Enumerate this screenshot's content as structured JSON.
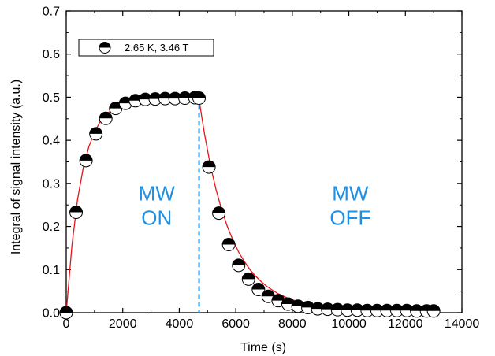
{
  "chart_data": {
    "type": "scatter",
    "xlabel": "Time (s)",
    "ylabel": "Integral of signal intensity (a.u.)",
    "xlim": [
      0,
      14000
    ],
    "ylim": [
      0,
      0.7
    ],
    "xticks": [
      0,
      2000,
      4000,
      6000,
      8000,
      10000,
      12000,
      14000
    ],
    "xtick_labels": [
      "0",
      "2000",
      "4000",
      "6000",
      "8000",
      "10000",
      "12000",
      "14000"
    ],
    "yticks": [
      0.0,
      0.1,
      0.2,
      0.3,
      0.4,
      0.5,
      0.6,
      0.7
    ],
    "ytick_labels": [
      "0.0",
      "0.1",
      "0.2",
      "0.3",
      "0.4",
      "0.5",
      "0.6",
      "0.7"
    ],
    "grid": false,
    "legend_position": "top-left",
    "series": [
      {
        "name": "2.65 K, 3.46 T",
        "marker": "half-filled circle (top black)",
        "x": [
          0,
          350,
          700,
          1050,
          1400,
          1750,
          2100,
          2450,
          2800,
          3150,
          3500,
          3850,
          4200,
          4550,
          4700,
          5050,
          5400,
          5750,
          6100,
          6450,
          6800,
          7150,
          7500,
          7850,
          8200,
          8550,
          8900,
          9250,
          9600,
          9950,
          10300,
          10650,
          11000,
          11350,
          11700,
          12050,
          12400,
          12750,
          13000
        ],
        "y": [
          0.0,
          0.233,
          0.353,
          0.415,
          0.451,
          0.474,
          0.486,
          0.492,
          0.495,
          0.496,
          0.497,
          0.497,
          0.498,
          0.499,
          0.498,
          0.338,
          0.231,
          0.158,
          0.11,
          0.078,
          0.054,
          0.038,
          0.028,
          0.02,
          0.015,
          0.012,
          0.009,
          0.008,
          0.007,
          0.006,
          0.006,
          0.005,
          0.005,
          0.005,
          0.005,
          0.005,
          0.004,
          0.004,
          0.004
        ]
      },
      {
        "name": "fit",
        "style": "red line",
        "color": "#e8141b",
        "x": [
          0,
          200,
          400,
          600,
          800,
          1000,
          1200,
          1400,
          1600,
          1800,
          2000,
          2200,
          2400,
          2600,
          2800,
          3000,
          3300,
          3600,
          3900,
          4200,
          4500,
          4700,
          4900,
          5100,
          5300,
          5500,
          5700,
          5900,
          6100,
          6300,
          6500,
          6700,
          6900,
          7100,
          7300,
          7500,
          7800,
          8100,
          8400,
          8700,
          9000,
          9500,
          10000,
          10500,
          11000,
          11500,
          12000,
          12500,
          13000
        ],
        "y": [
          0.0,
          0.155,
          0.262,
          0.335,
          0.385,
          0.419,
          0.443,
          0.459,
          0.47,
          0.477,
          0.482,
          0.486,
          0.488,
          0.49,
          0.491,
          0.492,
          0.493,
          0.493,
          0.494,
          0.494,
          0.494,
          0.494,
          0.412,
          0.342,
          0.286,
          0.239,
          0.2,
          0.168,
          0.141,
          0.119,
          0.1,
          0.085,
          0.072,
          0.061,
          0.052,
          0.044,
          0.035,
          0.028,
          0.022,
          0.018,
          0.015,
          0.011,
          0.009,
          0.007,
          0.006,
          0.005,
          0.005,
          0.004,
          0.004
        ]
      }
    ],
    "vline": {
      "x": 4700,
      "color": "#1e90e6",
      "style": "dashed"
    },
    "annotations": [
      {
        "lines": [
          "MW",
          "ON"
        ],
        "x": 3200,
        "y": 0.26,
        "color": "#1e90e6"
      },
      {
        "lines": [
          "MW",
          "OFF"
        ],
        "x": 10050,
        "y": 0.26,
        "color": "#1e90e6"
      }
    ]
  }
}
